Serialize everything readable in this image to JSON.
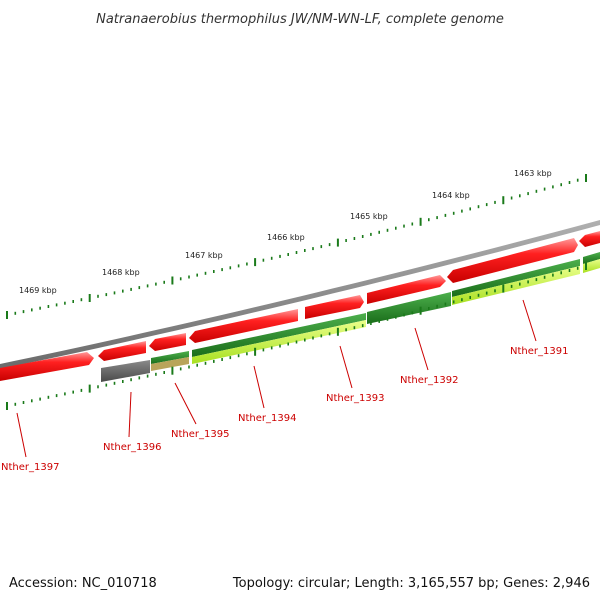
{
  "title": "Natranaerobius thermophilus JW/NM-WN-LF, complete genome",
  "footer": {
    "accession": "Accession: NC_010718",
    "summary": "Topology: circular; Length: 3,165,557 bp; Genes: 2,946"
  },
  "scale_labels": [
    "1463 kbp",
    "1464 kbp",
    "1465 kbp",
    "1466 kbp",
    "1467 kbp",
    "1468 kbp",
    "1469 kbp"
  ],
  "gene_labels": [
    "Nther_1391",
    "Nther_1392",
    "Nther_1393",
    "Nther_1394",
    "Nther_1395",
    "Nther_1396",
    "Nther_1397"
  ],
  "colors": {
    "forward_cds": "#ee1111",
    "reverse_cds_dark": "#2a8a2a",
    "reverse_cds_light": "#ccff33",
    "other_gene": "#666666",
    "backbone": "#888888",
    "tick": "#1a7a1a",
    "label": "#cc0000"
  }
}
